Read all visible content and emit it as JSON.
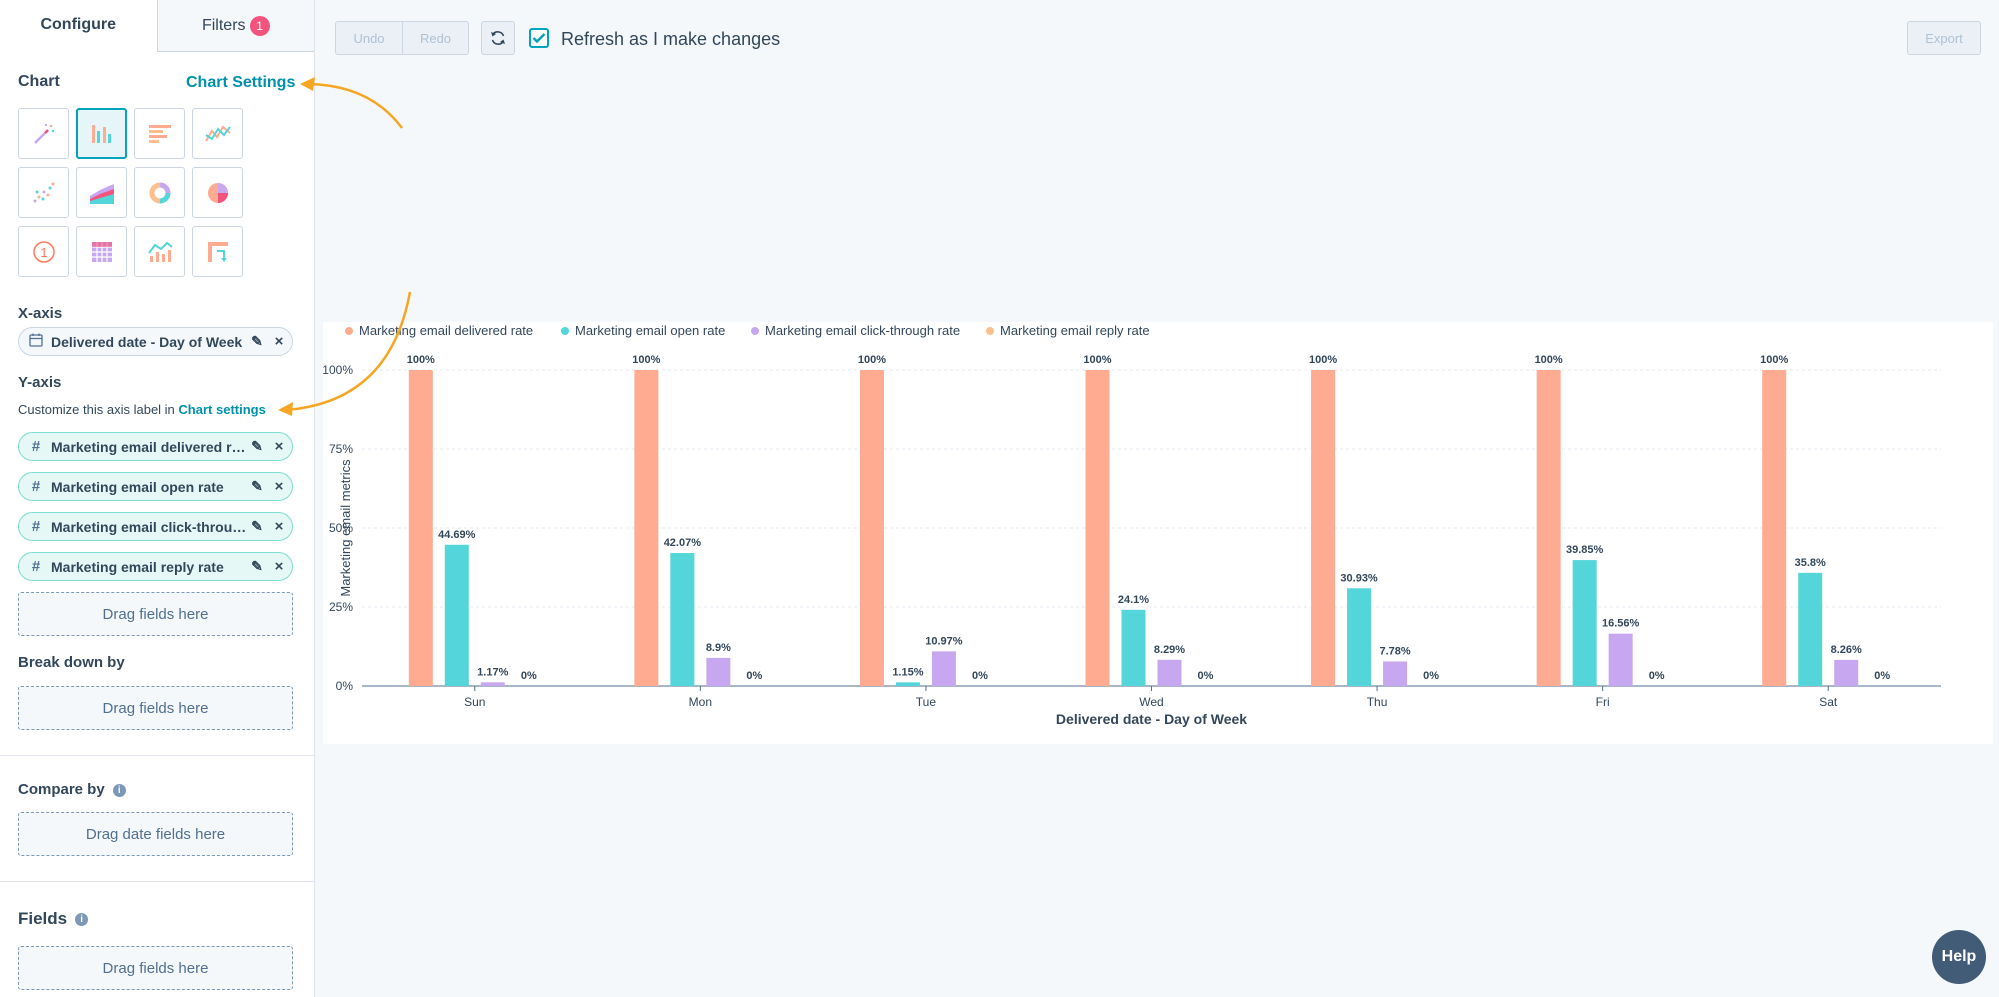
{
  "tabs": {
    "configure": "Configure",
    "filters": "Filters",
    "filters_badge": "1"
  },
  "chart_section": {
    "title": "Chart",
    "settings_link": "Chart Settings",
    "icons": [
      "magic-wand-icon",
      "vertical-bar-chart-icon",
      "horizontal-bar-chart-icon",
      "line-chart-icon",
      "scatter-chart-icon",
      "area-chart-icon",
      "donut-chart-icon",
      "pie-chart-icon",
      "kpi-icon",
      "table-icon",
      "combo-chart-icon",
      "pivot-table-icon"
    ]
  },
  "xaxis": {
    "title": "X-axis",
    "field": "Delivered date - Day of Week"
  },
  "yaxis": {
    "title": "Y-axis",
    "hint": "Customize this axis label in",
    "hint_link": "Chart settings",
    "fields": [
      "Marketing email delivered rate",
      "Marketing email open rate",
      "Marketing email click-through rate",
      "Marketing email reply rate"
    ]
  },
  "drag_fields": "Drag fields here",
  "breakdown": {
    "title": "Break down by",
    "drop": "Drag fields here"
  },
  "compare": {
    "title": "Compare by",
    "drop": "Drag date fields here"
  },
  "fields_section": {
    "title": "Fields",
    "drop": "Drag fields here"
  },
  "toolbar": {
    "undo": "Undo",
    "redo": "Redo",
    "refresh_label": "Refresh as I make changes",
    "export": "Export"
  },
  "help": "Help",
  "colors": {
    "accent": "#00a4bd",
    "orange_arrow": "#f5a623"
  },
  "chart_data": {
    "type": "bar",
    "xlabel": "Delivered date - Day of Week",
    "ylabel": "Marketing email metrics",
    "categories": [
      "Sun",
      "Mon",
      "Tue",
      "Wed",
      "Thu",
      "Fri",
      "Sat"
    ],
    "ylim": [
      0,
      100
    ],
    "yticks": [
      "0%",
      "25%",
      "50%",
      "75%",
      "100%"
    ],
    "legend_position": "top-left",
    "series": [
      {
        "name": "Marketing email delivered rate",
        "color": "#ffab91",
        "values": [
          100,
          100,
          100,
          100,
          100,
          100,
          100
        ],
        "labels": [
          "100%",
          "100%",
          "100%",
          "100%",
          "100%",
          "100%",
          "100%"
        ]
      },
      {
        "name": "Marketing email open rate",
        "color": "#53d5d9",
        "values": [
          44.69,
          42.07,
          1.15,
          24.1,
          30.93,
          39.85,
          35.8
        ],
        "labels": [
          "44.69%",
          "42.07%",
          "1.15%",
          "24.1%",
          "30.93%",
          "39.85%",
          "35.8%"
        ]
      },
      {
        "name": "Marketing email click-through rate",
        "color": "#c7a8f0",
        "values": [
          1.17,
          8.9,
          10.97,
          8.29,
          7.78,
          16.56,
          8.26
        ],
        "labels": [
          "1.17%",
          "8.9%",
          "10.97%",
          "8.29%",
          "7.78%",
          "16.56%",
          "8.26%"
        ]
      },
      {
        "name": "Marketing email reply rate",
        "color": "#ffbe8c",
        "values": [
          0,
          0,
          0,
          0,
          0,
          0,
          0
        ],
        "labels": [
          "0%",
          "0%",
          "0%",
          "0%",
          "0%",
          "0%",
          "0%"
        ]
      }
    ]
  }
}
